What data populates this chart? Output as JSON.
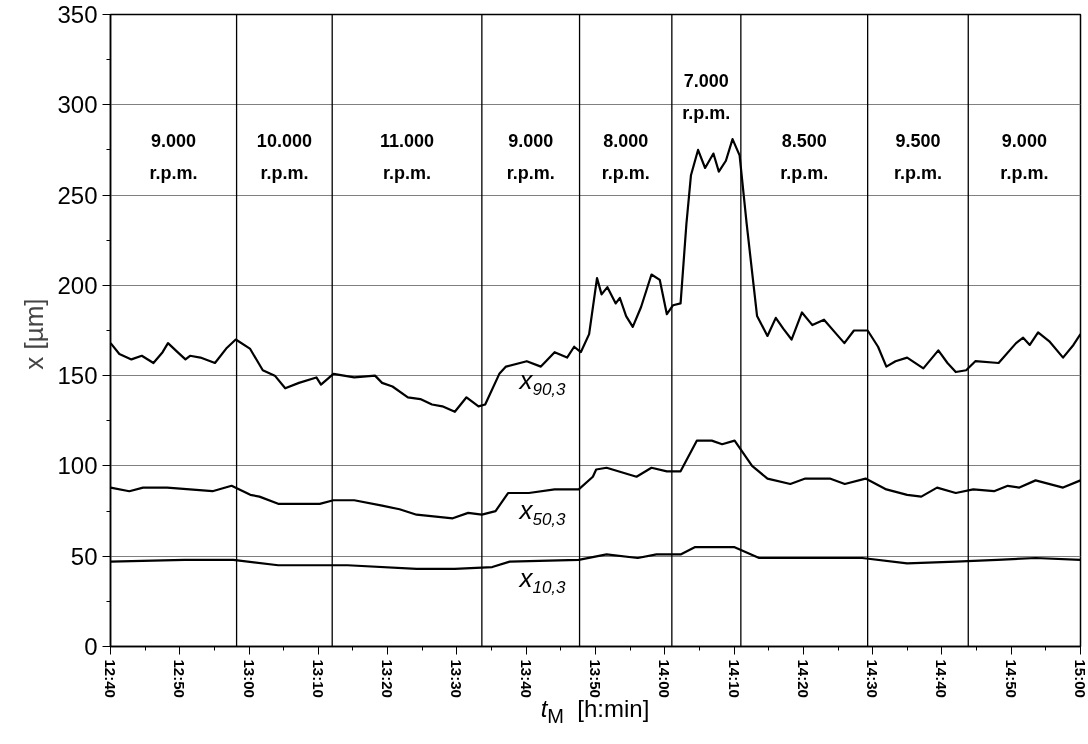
{
  "chart_data": {
    "type": "line",
    "xlabel": "t$_{M}$  [h:min]",
    "ylabel": "x  [µm]",
    "xlim": [
      12.6667,
      15
    ],
    "ylim": [
      0,
      350
    ],
    "xticks": [
      {
        "value": 12.6667,
        "label": "12:40"
      },
      {
        "value": 12.75,
        "label": null
      },
      {
        "value": 12.8333,
        "label": "12:50"
      },
      {
        "value": 12.9167,
        "label": null
      },
      {
        "value": 13,
        "label": "13:00"
      },
      {
        "value": 13.0833,
        "label": null
      },
      {
        "value": 13.1667,
        "label": "13:10"
      },
      {
        "value": 13.25,
        "label": null
      },
      {
        "value": 13.3333,
        "label": "13:20"
      },
      {
        "value": 13.4167,
        "label": null
      },
      {
        "value": 13.5,
        "label": "13:30"
      },
      {
        "value": 13.5833,
        "label": null
      },
      {
        "value": 13.6667,
        "label": "13:40"
      },
      {
        "value": 13.75,
        "label": null
      },
      {
        "value": 13.8333,
        "label": "13:50"
      },
      {
        "value": 13.9167,
        "label": null
      },
      {
        "value": 14,
        "label": "14:00"
      },
      {
        "value": 14.0833,
        "label": null
      },
      {
        "value": 14.1667,
        "label": "14:10"
      },
      {
        "value": 14.25,
        "label": null
      },
      {
        "value": 14.3333,
        "label": "14:20"
      },
      {
        "value": 14.4167,
        "label": null
      },
      {
        "value": 14.5,
        "label": "14:30"
      },
      {
        "value": 14.5833,
        "label": null
      },
      {
        "value": 14.6667,
        "label": "14:40"
      },
      {
        "value": 14.75,
        "label": null
      },
      {
        "value": 14.8333,
        "label": "14:50"
      },
      {
        "value": 14.9167,
        "label": null
      },
      {
        "value": 15,
        "label": "15:00"
      }
    ],
    "yticks": [
      0,
      {
        "value": 25,
        "label": null
      },
      50,
      {
        "value": 75,
        "label": null
      },
      100,
      {
        "value": 125,
        "label": null
      },
      150,
      {
        "value": 175,
        "label": null
      },
      200,
      {
        "value": 225,
        "label": null
      },
      250,
      {
        "value": 275,
        "label": null
      },
      300,
      {
        "value": 325,
        "label": null
      },
      350
    ],
    "grid": "y",
    "line_style": "solid",
    "marker": "none",
    "series": [
      {
        "name": "x$_{90,3}$",
        "color": "#000000",
        "x": [
          12.667,
          12.688,
          12.717,
          12.742,
          12.77,
          12.792,
          12.805,
          12.828,
          12.847,
          12.858,
          12.883,
          12.918,
          12.945,
          12.968,
          13.002,
          13.033,
          13.062,
          13.087,
          13.12,
          13.162,
          13.173,
          13.203,
          13.253,
          13.303,
          13.32,
          13.345,
          13.382,
          13.412,
          13.44,
          13.465,
          13.495,
          13.523,
          13.552,
          13.568,
          13.602,
          13.618,
          13.668,
          13.702,
          13.735,
          13.765,
          13.782,
          13.798,
          13.818,
          13.837,
          13.848,
          13.862,
          13.882,
          13.892,
          13.907,
          13.923,
          13.943,
          13.968,
          13.988,
          14.005,
          14.02,
          14.038,
          14.052,
          14.063,
          14.08,
          14.097,
          14.117,
          14.13,
          14.147,
          14.163,
          14.18,
          14.197,
          14.222,
          14.247,
          14.267,
          14.285,
          14.305,
          14.33,
          14.355,
          14.383,
          14.413,
          14.432,
          14.455,
          14.488,
          14.513,
          14.533,
          14.555,
          14.583,
          14.622,
          14.658,
          14.68,
          14.7,
          14.725,
          14.747,
          14.803,
          14.845,
          14.862,
          14.878,
          14.898,
          14.925,
          14.958,
          14.983,
          15.0
        ],
        "values": [
          168,
          162,
          159,
          161,
          157,
          163,
          168,
          163,
          159,
          161,
          160,
          157,
          165,
          170,
          165,
          153,
          150,
          143,
          146,
          149,
          145,
          151,
          149,
          150,
          146,
          144,
          138,
          137,
          134,
          133,
          130,
          138,
          133,
          134,
          151,
          155,
          158,
          155,
          163,
          160,
          166,
          163,
          173,
          204,
          195,
          199,
          190,
          193,
          183,
          177,
          188,
          206,
          203,
          184,
          189,
          190,
          234,
          261,
          275,
          265,
          273,
          263,
          269,
          281,
          272,
          234,
          183,
          172,
          182,
          176,
          170,
          185,
          178,
          181,
          173,
          168,
          175,
          175,
          166,
          155,
          158,
          160,
          154,
          164,
          157,
          152,
          153,
          158,
          157,
          168,
          171,
          167,
          174,
          169,
          160,
          167,
          173
        ]
      },
      {
        "name": "x$_{50,3}$",
        "color": "#000000",
        "x": [
          12.667,
          12.712,
          12.745,
          12.803,
          12.912,
          12.958,
          13.003,
          13.025,
          13.07,
          13.103,
          13.17,
          13.203,
          13.253,
          13.32,
          13.362,
          13.403,
          13.49,
          13.527,
          13.56,
          13.593,
          13.623,
          13.673,
          13.735,
          13.793,
          13.827,
          13.835,
          13.86,
          13.932,
          13.968,
          14.005,
          14.038,
          14.077,
          14.113,
          14.138,
          14.168,
          14.21,
          14.247,
          14.302,
          14.338,
          14.397,
          14.433,
          14.483,
          14.533,
          14.583,
          14.617,
          14.655,
          14.7,
          14.742,
          14.792,
          14.825,
          14.853,
          14.892,
          14.958,
          15.0
        ],
        "values": [
          88,
          86,
          88,
          88,
          86,
          89,
          84,
          83,
          79,
          79,
          79,
          81,
          81,
          78,
          76,
          73,
          71,
          74,
          73,
          75,
          85,
          85,
          87,
          87,
          94,
          98,
          99,
          94,
          99,
          97,
          97,
          114,
          114,
          112,
          114,
          100,
          93,
          90,
          93,
          93,
          90,
          93,
          87,
          84,
          83,
          88,
          85,
          87,
          86,
          89,
          88,
          92,
          88,
          92
        ]
      },
      {
        "name": "x$_{10,3}$",
        "color": "#000000",
        "x": [
          12.667,
          12.845,
          12.962,
          13.07,
          13.237,
          13.403,
          13.495,
          13.585,
          13.627,
          13.793,
          13.86,
          13.935,
          13.98,
          14.038,
          14.072,
          14.135,
          14.168,
          14.227,
          14.302,
          14.475,
          14.583,
          14.7,
          14.8,
          14.892,
          15.0
        ],
        "values": [
          47,
          48,
          48,
          45,
          45,
          43,
          43,
          44,
          47,
          48,
          51,
          49,
          51,
          51,
          55,
          55,
          55,
          49,
          49,
          49,
          46,
          47,
          48,
          49,
          48
        ]
      }
    ],
    "ref_lines": [
      {
        "axis": "x",
        "value": 12.97
      },
      {
        "axis": "x",
        "value": 13.2
      },
      {
        "axis": "x",
        "value": 13.56
      },
      {
        "axis": "x",
        "value": 13.795
      },
      {
        "axis": "x",
        "value": 14.017
      },
      {
        "axis": "x",
        "value": 14.183
      },
      {
        "axis": "x",
        "value": 14.488
      },
      {
        "axis": "x",
        "value": 14.73
      }
    ],
    "annotations": [
      "9.000\nr.p.m.",
      "10.000\nr.p.m.",
      "11.000\nr.p.m.",
      "9.000\nr.p.m.",
      "8.000\nr.p.m.",
      "7.000\nr.p.m.",
      "8.500\nr.p.m.",
      "9.500\nr.p.m.",
      "9.000\nr.p.m."
    ]
  }
}
